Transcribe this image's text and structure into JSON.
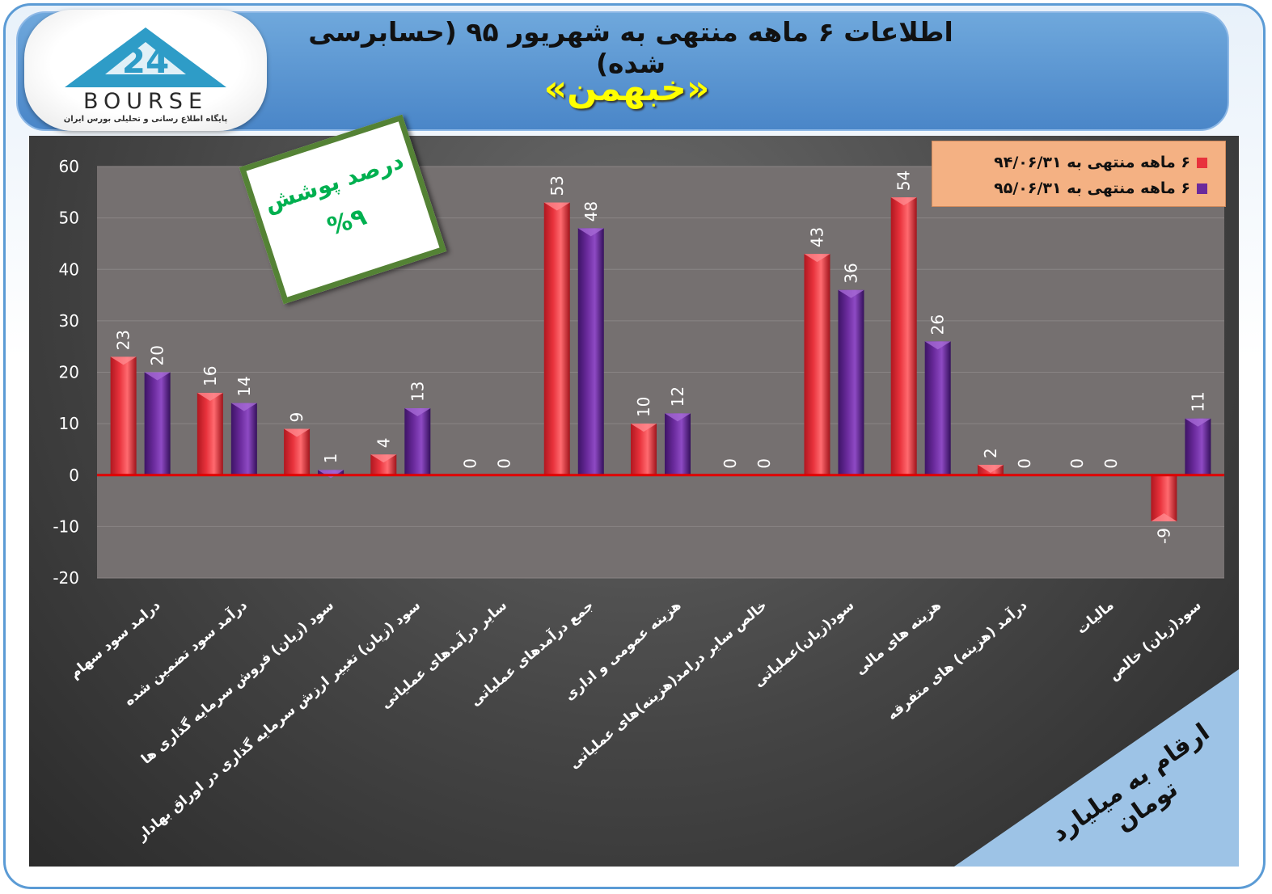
{
  "header": {
    "title": "اطلاعات ۶ ماهه منتهی به شهریور ۹۵ (حسابرسی شده)",
    "symbol": "«خبهمن»",
    "logo_text": "BOURSE",
    "logo_sub": "پایگاه اطلاع رسانی و تحلیلی بورس ایران"
  },
  "badge": {
    "label": "درصد پوشش",
    "value": "%۹"
  },
  "units_note": "ارقام به میلیارد تومان",
  "colors": {
    "series1": "#e8323c",
    "series2": "#6a2a9c",
    "zero_line": "#e00000",
    "badge_border": "#548235",
    "badge_text": "#00b050",
    "legend_bg": "#f4b183"
  },
  "chart_data": {
    "type": "bar",
    "ylim": [
      -20,
      60
    ],
    "yticks": [
      60,
      50,
      40,
      30,
      20,
      10,
      0,
      -10,
      -20
    ],
    "legend_position": "top-right",
    "categories": [
      "درامد سود سهام",
      "درآمد سود تضمین شده",
      "سود (زیان) فروش سرمایه گذاری ها",
      "سود (زیان) تغییر ارزش سرمایه گذاری در اوراق بهادار",
      "سایر درآمدهای عملیاتی",
      "جمع درآمدهای عملیاتی",
      "هزینه عمومی و اداری",
      "خالص سایر درامد(هزینه)های عملیاتی",
      "سود(زیان)عملیاتی",
      "هزینه های مالی",
      "درآمد (هزینه) های متفرقه",
      "مالیات",
      "سود(زیان) خالص"
    ],
    "series": [
      {
        "name": "۶ ماهه منتهی به ۹۴/۰۶/۳۱",
        "values": [
          23,
          16,
          9,
          4,
          0,
          53,
          10,
          0,
          43,
          54,
          2,
          0,
          -9
        ]
      },
      {
        "name": "۶ ماهه منتهی به ۹۵/۰۶/۳۱",
        "values": [
          20,
          14,
          1,
          13,
          0,
          48,
          12,
          0,
          36,
          26,
          0,
          0,
          11
        ]
      }
    ]
  }
}
